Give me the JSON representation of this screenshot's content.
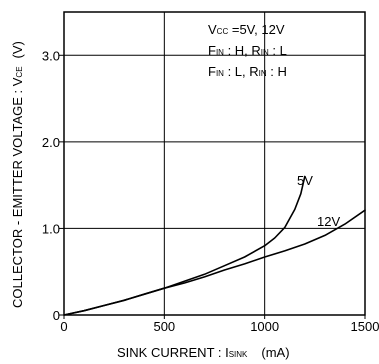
{
  "chart_data": {
    "type": "line",
    "ylabel_main": "COLLECTOR - EMITTER VOLTAGE : V",
    "ylabel_sub": "CE",
    "ylabel_unit": "(V)",
    "xlabel_main": "SINK  CURRENT : I",
    "xlabel_sub": "SINK",
    "xlabel_unit": "(mA)",
    "xlim": [
      0,
      1500
    ],
    "ylim": [
      0,
      3.5
    ],
    "x_ticks": [
      {
        "value": 0,
        "label": "0"
      },
      {
        "value": 500,
        "label": "500"
      },
      {
        "value": 1000,
        "label": "1000"
      },
      {
        "value": 1500,
        "label": "1500"
      }
    ],
    "y_ticks": [
      {
        "value": 0,
        "label": "0"
      },
      {
        "value": 1,
        "label": "1.0"
      },
      {
        "value": 2,
        "label": "2.0"
      },
      {
        "value": 3,
        "label": "3.0"
      }
    ],
    "legend": [
      {
        "a": "V",
        "a_sub": "CC",
        "b": " =5V,  12V"
      },
      {
        "a": "F",
        "a_sub": "IN",
        "b": " : H,  R",
        "c_sub": "IN",
        "c": " : L"
      },
      {
        "a": "F",
        "a_sub": "IN",
        "b": " : L,  R",
        "c_sub": "IN",
        "c": " : H"
      }
    ],
    "series": [
      {
        "name": "5V",
        "x": [
          0,
          100,
          200,
          300,
          400,
          500,
          600,
          700,
          800,
          900,
          1000,
          1050,
          1100,
          1150,
          1180,
          1200
        ],
        "y": [
          0,
          0.05,
          0.11,
          0.17,
          0.24,
          0.31,
          0.39,
          0.47,
          0.57,
          0.67,
          0.8,
          0.89,
          1.01,
          1.22,
          1.4,
          1.6
        ]
      },
      {
        "name": "12V",
        "x": [
          0,
          100,
          200,
          300,
          400,
          500,
          600,
          700,
          800,
          900,
          1000,
          1100,
          1200,
          1300,
          1400,
          1500
        ],
        "y": [
          0,
          0.05,
          0.11,
          0.17,
          0.24,
          0.31,
          0.37,
          0.44,
          0.52,
          0.59,
          0.67,
          0.74,
          0.82,
          0.92,
          1.05,
          1.21
        ]
      }
    ]
  }
}
